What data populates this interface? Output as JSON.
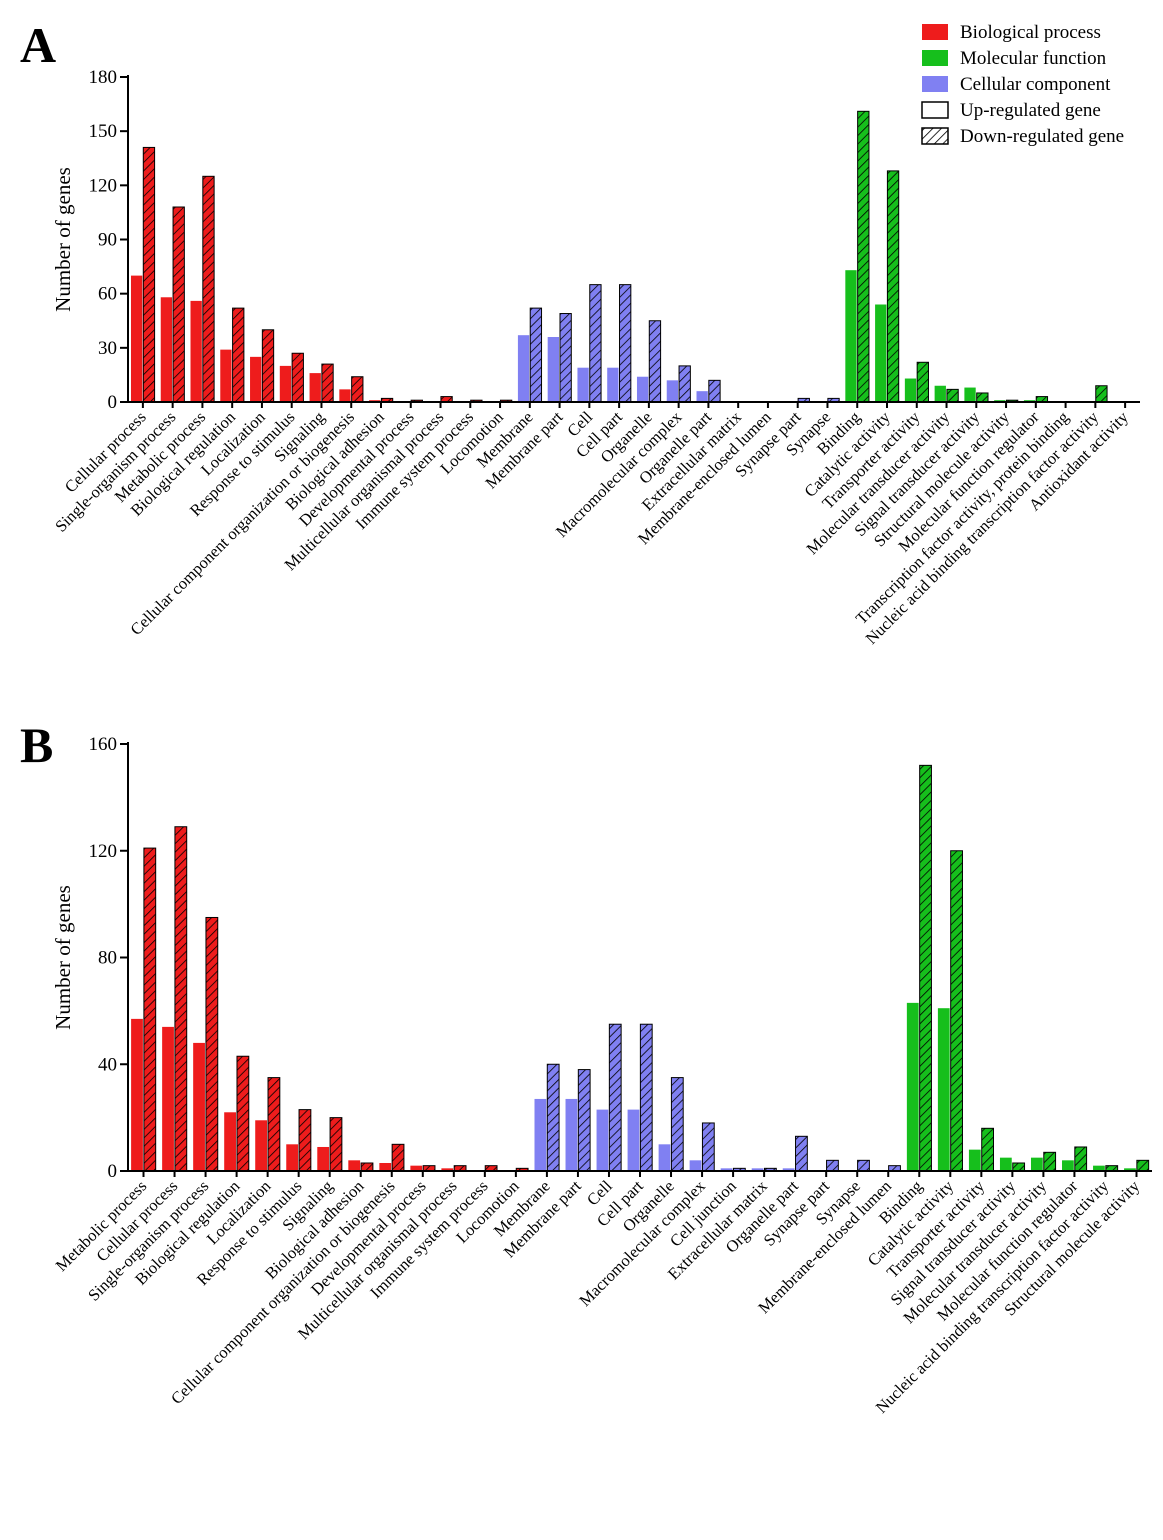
{
  "colors": {
    "Biological process": "#ee1c1c",
    "Molecular function": "#16bf1c",
    "Cellular component": "#8080f2"
  },
  "legend": {
    "items": [
      {
        "label": "Biological process",
        "kind": "fill",
        "color": "#ee1c1c"
      },
      {
        "label": "Molecular function",
        "kind": "fill",
        "color": "#16bf1c"
      },
      {
        "label": "Cellular component",
        "kind": "fill",
        "color": "#8080f2"
      },
      {
        "label": "Up-regulated gene",
        "kind": "empty"
      },
      {
        "label": "Down-regulated gene",
        "kind": "hatch"
      }
    ]
  },
  "chart_data": [
    {
      "panel": "A",
      "type": "bar",
      "ylabel": "Number of genes",
      "ylim": [
        0,
        180
      ],
      "yticks": [
        0,
        30,
        60,
        90,
        120,
        150,
        180
      ],
      "series_names": [
        "Up-regulated gene",
        "Down-regulated gene"
      ],
      "categories": [
        {
          "name": "Cellular process",
          "group": "Biological process",
          "up": 70,
          "down": 141
        },
        {
          "name": "Single-organism process",
          "group": "Biological process",
          "up": 58,
          "down": 108
        },
        {
          "name": "Metabolic process",
          "group": "Biological process",
          "up": 56,
          "down": 125
        },
        {
          "name": "Biological regulation",
          "group": "Biological process",
          "up": 29,
          "down": 52
        },
        {
          "name": "Localization",
          "group": "Biological process",
          "up": 25,
          "down": 40
        },
        {
          "name": "Response to stimulus",
          "group": "Biological process",
          "up": 20,
          "down": 27
        },
        {
          "name": "Signaling",
          "group": "Biological process",
          "up": 16,
          "down": 21
        },
        {
          "name": "Cellular component organization or biogenesis",
          "group": "Biological process",
          "up": 7,
          "down": 14
        },
        {
          "name": "Biological adhesion",
          "group": "Biological process",
          "up": 1,
          "down": 2
        },
        {
          "name": "Developmental process",
          "group": "Biological process",
          "up": 0,
          "down": 1
        },
        {
          "name": "Multicellular organismal process",
          "group": "Biological process",
          "up": 0,
          "down": 3
        },
        {
          "name": "Immune system process",
          "group": "Biological process",
          "up": 0,
          "down": 1
        },
        {
          "name": "Locomotion",
          "group": "Biological process",
          "up": 0,
          "down": 1
        },
        {
          "name": "Membrane",
          "group": "Cellular component",
          "up": 37,
          "down": 52
        },
        {
          "name": "Membrane part",
          "group": "Cellular component",
          "up": 36,
          "down": 49
        },
        {
          "name": "Cell",
          "group": "Cellular component",
          "up": 19,
          "down": 65
        },
        {
          "name": "Cell part",
          "group": "Cellular component",
          "up": 19,
          "down": 65
        },
        {
          "name": "Organelle",
          "group": "Cellular component",
          "up": 14,
          "down": 45
        },
        {
          "name": "Macromolecular complex",
          "group": "Cellular component",
          "up": 12,
          "down": 20
        },
        {
          "name": "Organelle part",
          "group": "Cellular component",
          "up": 6,
          "down": 12
        },
        {
          "name": "Extracellular matrix",
          "group": "Cellular component",
          "up": 0,
          "down": 0
        },
        {
          "name": "Membrane-enclosed lumen",
          "group": "Cellular component",
          "up": 0,
          "down": 0
        },
        {
          "name": "Synapse part",
          "group": "Cellular component",
          "up": 0,
          "down": 2
        },
        {
          "name": "Synapse",
          "group": "Cellular component",
          "up": 0,
          "down": 2
        },
        {
          "name": "Binding",
          "group": "Molecular function",
          "up": 73,
          "down": 161
        },
        {
          "name": "Catalytic activity",
          "group": "Molecular function",
          "up": 54,
          "down": 128
        },
        {
          "name": "Transporter activity",
          "group": "Molecular function",
          "up": 13,
          "down": 22
        },
        {
          "name": "Molecular transducer activity",
          "group": "Molecular function",
          "up": 9,
          "down": 7
        },
        {
          "name": "Signal transducer activity",
          "group": "Molecular function",
          "up": 8,
          "down": 5
        },
        {
          "name": "Structural molecule activity",
          "group": "Molecular function",
          "up": 1,
          "down": 1
        },
        {
          "name": "Molecular function regulator",
          "group": "Molecular function",
          "up": 1,
          "down": 3
        },
        {
          "name": "Transcription factor activity, protein binding",
          "group": "Molecular function",
          "up": 0,
          "down": 0
        },
        {
          "name": "Nucleic acid binding transcription factor activity",
          "group": "Molecular function",
          "up": 0,
          "down": 9
        },
        {
          "name": "Antioxidant activity",
          "group": "Molecular function",
          "up": 0,
          "down": 0
        }
      ]
    },
    {
      "panel": "B",
      "type": "bar",
      "ylabel": "Number of genes",
      "ylim": [
        0,
        160
      ],
      "yticks": [
        0,
        40,
        80,
        120,
        160
      ],
      "series_names": [
        "Up-regulated gene",
        "Down-regulated gene"
      ],
      "categories": [
        {
          "name": "Metabolic process",
          "group": "Biological process",
          "up": 57,
          "down": 121
        },
        {
          "name": "Cellular process",
          "group": "Biological process",
          "up": 54,
          "down": 129
        },
        {
          "name": "Single-organism process",
          "group": "Biological process",
          "up": 48,
          "down": 95
        },
        {
          "name": "Biological regulation",
          "group": "Biological process",
          "up": 22,
          "down": 43
        },
        {
          "name": "Localization",
          "group": "Biological process",
          "up": 19,
          "down": 35
        },
        {
          "name": "Response to stimulus",
          "group": "Biological process",
          "up": 10,
          "down": 23
        },
        {
          "name": "Signaling",
          "group": "Biological process",
          "up": 9,
          "down": 20
        },
        {
          "name": "Biological adhesion",
          "group": "Biological process",
          "up": 4,
          "down": 3
        },
        {
          "name": "Cellular component organization or biogenesis",
          "group": "Biological process",
          "up": 3,
          "down": 10
        },
        {
          "name": "Developmental process",
          "group": "Biological process",
          "up": 2,
          "down": 2
        },
        {
          "name": "Multicellular organismal process",
          "group": "Biological process",
          "up": 1,
          "down": 2
        },
        {
          "name": "Immune system process",
          "group": "Biological process",
          "up": 0,
          "down": 2
        },
        {
          "name": "Locomotion",
          "group": "Biological process",
          "up": 0,
          "down": 1
        },
        {
          "name": "Membrane",
          "group": "Cellular component",
          "up": 27,
          "down": 40
        },
        {
          "name": "Membrane part",
          "group": "Cellular component",
          "up": 27,
          "down": 38
        },
        {
          "name": "Cell",
          "group": "Cellular component",
          "up": 23,
          "down": 55
        },
        {
          "name": "Cell part",
          "group": "Cellular component",
          "up": 23,
          "down": 55
        },
        {
          "name": "Organelle",
          "group": "Cellular component",
          "up": 10,
          "down": 35
        },
        {
          "name": "Macromolecular complex",
          "group": "Cellular component",
          "up": 4,
          "down": 18
        },
        {
          "name": "Cell junction",
          "group": "Cellular component",
          "up": 1,
          "down": 1
        },
        {
          "name": "Extracellular matrix",
          "group": "Cellular component",
          "up": 1,
          "down": 1
        },
        {
          "name": "Organelle part",
          "group": "Cellular component",
          "up": 1,
          "down": 13
        },
        {
          "name": "Synapse part",
          "group": "Cellular component",
          "up": 0,
          "down": 4
        },
        {
          "name": "Synapse",
          "group": "Cellular component",
          "up": 0,
          "down": 4
        },
        {
          "name": "Membrane-enclosed lumen",
          "group": "Cellular component",
          "up": 0,
          "down": 2
        },
        {
          "name": "Binding",
          "group": "Molecular function",
          "up": 63,
          "down": 152
        },
        {
          "name": "Catalytic activity",
          "group": "Molecular function",
          "up": 61,
          "down": 120
        },
        {
          "name": "Transporter activity",
          "group": "Molecular function",
          "up": 8,
          "down": 16
        },
        {
          "name": "Signal transducer activity",
          "group": "Molecular function",
          "up": 5,
          "down": 3
        },
        {
          "name": "Molecular transducer activity",
          "group": "Molecular function",
          "up": 5,
          "down": 7
        },
        {
          "name": "Molecular function regulator",
          "group": "Molecular function",
          "up": 4,
          "down": 9
        },
        {
          "name": "Nucleic acid binding transcription factor activity",
          "group": "Molecular function",
          "up": 2,
          "down": 2
        },
        {
          "name": "Structural molecule activity",
          "group": "Molecular function",
          "up": 1,
          "down": 4
        }
      ]
    }
  ]
}
